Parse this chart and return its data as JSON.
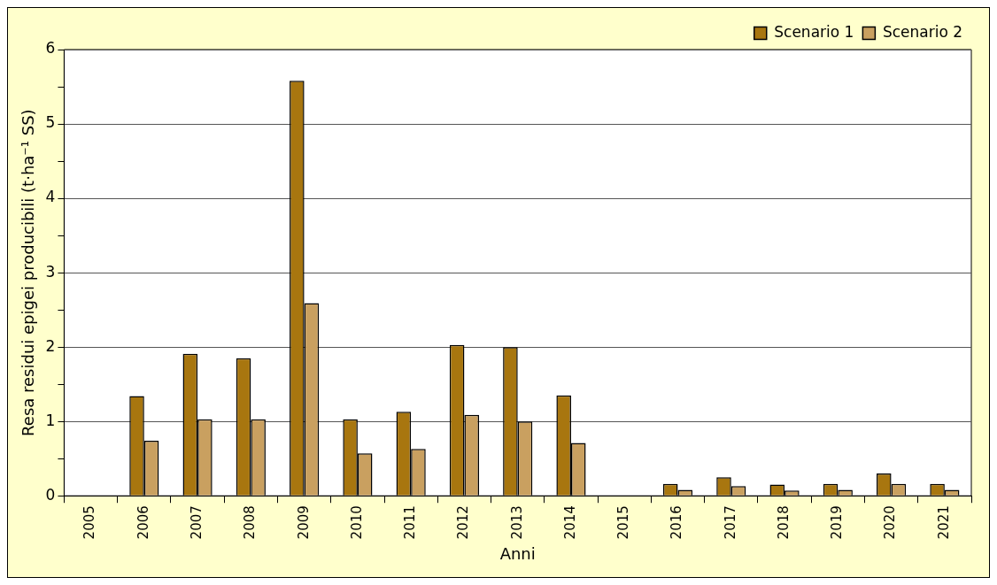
{
  "chart_data": {
    "type": "bar",
    "xlabel": "Anni",
    "ylabel": "Resa residui epigei producibili (t·ha⁻¹ SS)",
    "categories": [
      "2005",
      "2006",
      "2007",
      "2008",
      "2009",
      "2010",
      "2011",
      "2012",
      "2013",
      "2014",
      "2015",
      "2016",
      "2017",
      "2018",
      "2019",
      "2020",
      "2021"
    ],
    "series": [
      {
        "name": "Scenario 1",
        "color": "#a8760f",
        "values": [
          null,
          1.34,
          1.91,
          1.85,
          5.58,
          1.03,
          1.13,
          2.03,
          2.0,
          1.35,
          null,
          0.16,
          0.25,
          0.15,
          0.16,
          0.3,
          0.16
        ]
      },
      {
        "name": "Scenario 2",
        "color": "#c9a060",
        "values": [
          null,
          0.74,
          1.03,
          1.03,
          2.59,
          0.57,
          0.63,
          1.09,
          1.0,
          0.71,
          null,
          0.08,
          0.13,
          0.07,
          0.08,
          0.16,
          0.08
        ]
      }
    ],
    "ylim": [
      0,
      6
    ],
    "yticks": [
      0,
      {
        "value": 0.5,
        "label": null
      },
      1,
      {
        "value": 1.5,
        "label": null
      },
      2,
      {
        "value": 2.5,
        "label": null
      },
      3,
      {
        "value": 3.5,
        "label": null
      },
      4,
      {
        "value": 4.5,
        "label": null
      },
      5,
      {
        "value": 5.5,
        "label": null
      },
      6
    ],
    "grid": "y",
    "legend": "top right"
  }
}
